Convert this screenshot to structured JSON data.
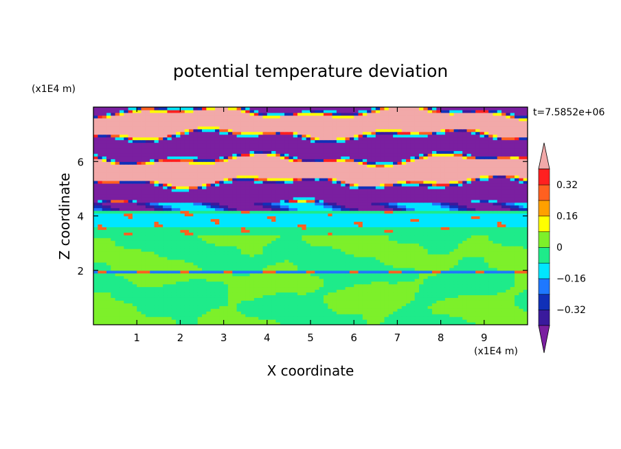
{
  "chart_data": {
    "type": "heatmap",
    "title": "potential temperature deviation",
    "xlabel": "X coordinate",
    "ylabel": "Z coordinate",
    "x_unit": "(x1E4 m)",
    "y_unit": "(x1E4 m)",
    "time_label": "t=7.5852e+06",
    "xlim": [
      0,
      10
    ],
    "ylim": [
      0,
      8
    ],
    "x_ticks": [
      1,
      2,
      3,
      4,
      5,
      6,
      7,
      8,
      9
    ],
    "y_ticks": [
      2,
      4,
      6
    ],
    "colorbar": {
      "levels": [
        -0.4,
        -0.32,
        -0.24,
        -0.16,
        -0.08,
        0,
        0.08,
        0.16,
        0.24,
        0.32,
        0.4
      ],
      "tick_labels": [
        "0.32",
        "0.16",
        "0",
        "−0.16",
        "−0.32"
      ],
      "tick_values": [
        0.32,
        0.16,
        0,
        -0.16,
        -0.32
      ],
      "colors_low_to_high": [
        "#7a1fa0",
        "#3a1a9c",
        "#1030b8",
        "#1e78ff",
        "#00e6ff",
        "#1eeb8a",
        "#7df02a",
        "#ffff00",
        "#ffa000",
        "#ff6020",
        "#ff2020",
        "#f2a9a9"
      ]
    },
    "bands": [
      {
        "z_range": [
          0,
          1.5
        ],
        "dominant": -0.04,
        "secondary": 0.04
      },
      {
        "z_range": [
          1.9,
          2.0
        ],
        "dominant": -0.2,
        "secondary": 0.3
      },
      {
        "z_range": [
          2.0,
          3.3
        ],
        "dominant": 0.04,
        "secondary": -0.04
      },
      {
        "z_range": [
          3.3,
          4.5
        ],
        "dominant": -0.1,
        "secondary": -0.04
      },
      {
        "z_range": [
          4.2,
          4.5
        ],
        "dominant": -0.28,
        "secondary": 0.2
      },
      {
        "z_range": [
          4.5,
          7.9
        ],
        "dominant_alternating": [
          0.45,
          -0.45
        ]
      }
    ]
  }
}
